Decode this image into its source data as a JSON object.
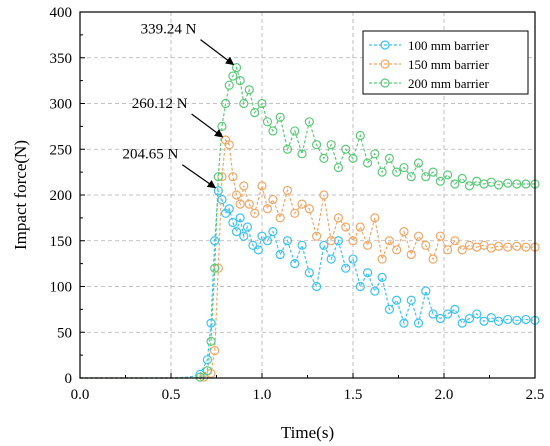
{
  "chart_data": {
    "type": "scatter",
    "xlabel": "Time(s)",
    "ylabel": "Impact force(N)",
    "xlim": [
      0.0,
      2.5
    ],
    "ylim": [
      0,
      400
    ],
    "x_ticks": [
      "0.0",
      "0.5",
      "1.0",
      "1.5",
      "2.0",
      "2.5"
    ],
    "y_ticks": [
      "0",
      "50",
      "100",
      "150",
      "200",
      "250",
      "300",
      "350",
      "400"
    ],
    "grid": true,
    "legend_position": "top-right",
    "series": [
      {
        "name": "100 mm barrier",
        "color": "#3cc3f2",
        "points": [
          [
            0.0,
            0
          ],
          [
            0.1,
            0
          ],
          [
            0.2,
            0
          ],
          [
            0.3,
            0
          ],
          [
            0.4,
            0
          ],
          [
            0.5,
            0
          ],
          [
            0.6,
            1
          ],
          [
            0.66,
            4
          ],
          [
            0.7,
            20
          ],
          [
            0.72,
            60
          ],
          [
            0.74,
            150
          ],
          [
            0.76,
            204.65
          ],
          [
            0.78,
            195
          ],
          [
            0.8,
            180
          ],
          [
            0.82,
            185
          ],
          [
            0.84,
            170
          ],
          [
            0.86,
            160
          ],
          [
            0.88,
            175
          ],
          [
            0.9,
            155
          ],
          [
            0.92,
            165
          ],
          [
            0.95,
            145
          ],
          [
            0.98,
            140
          ],
          [
            1.0,
            155
          ],
          [
            1.03,
            150
          ],
          [
            1.06,
            160
          ],
          [
            1.1,
            135
          ],
          [
            1.14,
            150
          ],
          [
            1.18,
            125
          ],
          [
            1.22,
            145
          ],
          [
            1.26,
            115
          ],
          [
            1.3,
            100
          ],
          [
            1.34,
            145
          ],
          [
            1.38,
            130
          ],
          [
            1.42,
            150
          ],
          [
            1.46,
            120
          ],
          [
            1.5,
            130
          ],
          [
            1.54,
            100
          ],
          [
            1.58,
            115
          ],
          [
            1.62,
            95
          ],
          [
            1.66,
            110
          ],
          [
            1.7,
            75
          ],
          [
            1.74,
            85
          ],
          [
            1.78,
            60
          ],
          [
            1.82,
            85
          ],
          [
            1.86,
            60
          ],
          [
            1.9,
            95
          ],
          [
            1.94,
            70
          ],
          [
            1.98,
            65
          ],
          [
            2.02,
            70
          ],
          [
            2.06,
            75
          ],
          [
            2.1,
            60
          ],
          [
            2.14,
            65
          ],
          [
            2.18,
            70
          ],
          [
            2.22,
            62
          ],
          [
            2.26,
            66
          ],
          [
            2.3,
            62
          ],
          [
            2.35,
            64
          ],
          [
            2.4,
            63
          ],
          [
            2.45,
            64
          ],
          [
            2.5,
            63
          ]
        ]
      },
      {
        "name": "150 mm barrier",
        "color": "#f2a766",
        "points": [
          [
            0.0,
            0
          ],
          [
            0.1,
            0
          ],
          [
            0.2,
            0
          ],
          [
            0.3,
            0
          ],
          [
            0.4,
            0
          ],
          [
            0.5,
            0
          ],
          [
            0.6,
            0
          ],
          [
            0.68,
            1
          ],
          [
            0.72,
            5
          ],
          [
            0.74,
            30
          ],
          [
            0.76,
            120
          ],
          [
            0.78,
            220
          ],
          [
            0.8,
            260.12
          ],
          [
            0.82,
            255
          ],
          [
            0.84,
            220
          ],
          [
            0.86,
            200
          ],
          [
            0.88,
            190
          ],
          [
            0.9,
            210
          ],
          [
            0.93,
            190
          ],
          [
            0.96,
            180
          ],
          [
            1.0,
            210
          ],
          [
            1.03,
            185
          ],
          [
            1.06,
            195
          ],
          [
            1.1,
            175
          ],
          [
            1.14,
            205
          ],
          [
            1.18,
            180
          ],
          [
            1.22,
            190
          ],
          [
            1.26,
            185
          ],
          [
            1.3,
            155
          ],
          [
            1.34,
            200
          ],
          [
            1.38,
            150
          ],
          [
            1.42,
            175
          ],
          [
            1.46,
            165
          ],
          [
            1.5,
            150
          ],
          [
            1.54,
            165
          ],
          [
            1.58,
            145
          ],
          [
            1.62,
            175
          ],
          [
            1.66,
            130
          ],
          [
            1.7,
            150
          ],
          [
            1.74,
            140
          ],
          [
            1.78,
            160
          ],
          [
            1.82,
            135
          ],
          [
            1.86,
            155
          ],
          [
            1.9,
            145
          ],
          [
            1.94,
            130
          ],
          [
            1.98,
            155
          ],
          [
            2.02,
            140
          ],
          [
            2.06,
            150
          ],
          [
            2.1,
            140
          ],
          [
            2.14,
            145
          ],
          [
            2.18,
            143
          ],
          [
            2.22,
            145
          ],
          [
            2.26,
            142
          ],
          [
            2.3,
            144
          ],
          [
            2.35,
            143
          ],
          [
            2.4,
            144
          ],
          [
            2.45,
            143
          ],
          [
            2.5,
            143
          ]
        ]
      },
      {
        "name": "200 mm barrier",
        "color": "#5cc97a",
        "points": [
          [
            0.0,
            0
          ],
          [
            0.1,
            0
          ],
          [
            0.2,
            0
          ],
          [
            0.3,
            0
          ],
          [
            0.4,
            0
          ],
          [
            0.5,
            0
          ],
          [
            0.6,
            0
          ],
          [
            0.66,
            1
          ],
          [
            0.7,
            8
          ],
          [
            0.72,
            40
          ],
          [
            0.74,
            120
          ],
          [
            0.76,
            220
          ],
          [
            0.78,
            275
          ],
          [
            0.8,
            300
          ],
          [
            0.82,
            320
          ],
          [
            0.84,
            330
          ],
          [
            0.86,
            339.24
          ],
          [
            0.88,
            325
          ],
          [
            0.9,
            300
          ],
          [
            0.93,
            315
          ],
          [
            0.96,
            290
          ],
          [
            1.0,
            300
          ],
          [
            1.03,
            280
          ],
          [
            1.06,
            270
          ],
          [
            1.1,
            285
          ],
          [
            1.14,
            250
          ],
          [
            1.18,
            270
          ],
          [
            1.22,
            245
          ],
          [
            1.26,
            280
          ],
          [
            1.3,
            255
          ],
          [
            1.34,
            240
          ],
          [
            1.38,
            255
          ],
          [
            1.42,
            230
          ],
          [
            1.46,
            250
          ],
          [
            1.5,
            240
          ],
          [
            1.54,
            265
          ],
          [
            1.58,
            235
          ],
          [
            1.62,
            245
          ],
          [
            1.66,
            225
          ],
          [
            1.7,
            240
          ],
          [
            1.74,
            225
          ],
          [
            1.78,
            230
          ],
          [
            1.82,
            220
          ],
          [
            1.86,
            235
          ],
          [
            1.9,
            220
          ],
          [
            1.94,
            225
          ],
          [
            1.98,
            215
          ],
          [
            2.02,
            222
          ],
          [
            2.06,
            212
          ],
          [
            2.1,
            218
          ],
          [
            2.14,
            210
          ],
          [
            2.18,
            215
          ],
          [
            2.22,
            212
          ],
          [
            2.26,
            214
          ],
          [
            2.3,
            211
          ],
          [
            2.35,
            213
          ],
          [
            2.4,
            212
          ],
          [
            2.45,
            212
          ],
          [
            2.5,
            212
          ]
        ]
      }
    ],
    "annotations": [
      {
        "text": "339.24 N",
        "x": 0.86,
        "y": 339.24
      },
      {
        "text": "260.12 N",
        "x": 0.8,
        "y": 260.12
      },
      {
        "text": "204.65 N",
        "x": 0.76,
        "y": 204.65
      }
    ]
  }
}
